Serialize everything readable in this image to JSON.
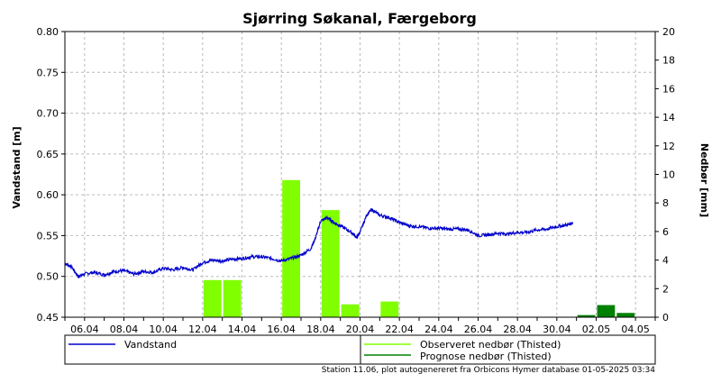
{
  "chart_data": {
    "type": "line",
    "title": "Sjørring Søkanal, Færgeborg",
    "ylabel": "Vandstand [m]",
    "y2label": "Nedbør [mm]",
    "ylim": [
      0.45,
      0.8
    ],
    "y2lim": [
      0,
      20
    ],
    "yticks": [
      "0.45",
      "0.50",
      "0.55",
      "0.60",
      "0.65",
      "0.70",
      "0.75",
      "0.80"
    ],
    "y2ticks": [
      "0",
      "2",
      "4",
      "6",
      "8",
      "10",
      "12",
      "14",
      "16",
      "18",
      "20"
    ],
    "xrange": [
      "2025-04-05",
      "2025-05-05"
    ],
    "xticks": [
      {
        "date": "2025-04-06",
        "label": "06.04"
      },
      {
        "date": "2025-04-08",
        "label": "08.04"
      },
      {
        "date": "2025-04-10",
        "label": "10.04"
      },
      {
        "date": "2025-04-12",
        "label": "12.04"
      },
      {
        "date": "2025-04-14",
        "label": "14.04"
      },
      {
        "date": "2025-04-16",
        "label": "16.04"
      },
      {
        "date": "2025-04-18",
        "label": "18.04"
      },
      {
        "date": "2025-04-20",
        "label": "20.04"
      },
      {
        "date": "2025-04-22",
        "label": "22.04"
      },
      {
        "date": "2025-04-24",
        "label": "24.04"
      },
      {
        "date": "2025-04-26",
        "label": "26.04"
      },
      {
        "date": "2025-04-28",
        "label": "28.04"
      },
      {
        "date": "2025-04-30",
        "label": "30.04"
      },
      {
        "date": "2025-05-02",
        "label": "02.05"
      },
      {
        "date": "2025-05-04",
        "label": "04.05"
      }
    ],
    "grid": true,
    "legend_position": "bottom",
    "series": [
      {
        "name": "Vandstand",
        "kind": "line",
        "axis": "left",
        "color": "#0000cc",
        "points": [
          [
            "2025-04-05 00:00",
            0.516
          ],
          [
            "2025-04-05 08:00",
            0.512
          ],
          [
            "2025-04-05 16:00",
            0.5
          ],
          [
            "2025-04-06 00:00",
            0.503
          ],
          [
            "2025-04-06 12:00",
            0.505
          ],
          [
            "2025-04-07 00:00",
            0.502
          ],
          [
            "2025-04-07 12:00",
            0.506
          ],
          [
            "2025-04-08 00:00",
            0.507
          ],
          [
            "2025-04-08 12:00",
            0.503
          ],
          [
            "2025-04-09 00:00",
            0.506
          ],
          [
            "2025-04-09 12:00",
            0.505
          ],
          [
            "2025-04-10 00:00",
            0.51
          ],
          [
            "2025-04-10 12:00",
            0.508
          ],
          [
            "2025-04-11 00:00",
            0.511
          ],
          [
            "2025-04-11 12:00",
            0.508
          ],
          [
            "2025-04-12 00:00",
            0.517
          ],
          [
            "2025-04-12 12:00",
            0.52
          ],
          [
            "2025-04-13 00:00",
            0.519
          ],
          [
            "2025-04-13 12:00",
            0.521
          ],
          [
            "2025-04-14 00:00",
            0.522
          ],
          [
            "2025-04-14 12:00",
            0.524
          ],
          [
            "2025-04-15 00:00",
            0.524
          ],
          [
            "2025-04-15 12:00",
            0.522
          ],
          [
            "2025-04-16 00:00",
            0.519
          ],
          [
            "2025-04-16 12:00",
            0.522
          ],
          [
            "2025-04-17 00:00",
            0.526
          ],
          [
            "2025-04-17 12:00",
            0.534
          ],
          [
            "2025-04-17 18:00",
            0.548
          ],
          [
            "2025-04-18 00:00",
            0.568
          ],
          [
            "2025-04-18 08:00",
            0.572
          ],
          [
            "2025-04-18 16:00",
            0.566
          ],
          [
            "2025-04-19 00:00",
            0.562
          ],
          [
            "2025-04-19 12:00",
            0.555
          ],
          [
            "2025-04-19 20:00",
            0.548
          ],
          [
            "2025-04-20 00:00",
            0.554
          ],
          [
            "2025-04-20 08:00",
            0.575
          ],
          [
            "2025-04-20 14:00",
            0.582
          ],
          [
            "2025-04-21 00:00",
            0.575
          ],
          [
            "2025-04-21 12:00",
            0.572
          ],
          [
            "2025-04-22 00:00",
            0.566
          ],
          [
            "2025-04-22 12:00",
            0.562
          ],
          [
            "2025-04-23 00:00",
            0.561
          ],
          [
            "2025-04-23 12:00",
            0.559
          ],
          [
            "2025-04-24 00:00",
            0.559
          ],
          [
            "2025-04-24 12:00",
            0.558
          ],
          [
            "2025-04-25 00:00",
            0.558
          ],
          [
            "2025-04-25 12:00",
            0.557
          ],
          [
            "2025-04-26 00:00",
            0.55
          ],
          [
            "2025-04-26 12:00",
            0.551
          ],
          [
            "2025-04-27 00:00",
            0.553
          ],
          [
            "2025-04-27 12:00",
            0.552
          ],
          [
            "2025-04-28 00:00",
            0.554
          ],
          [
            "2025-04-28 12:00",
            0.554
          ],
          [
            "2025-04-29 00:00",
            0.557
          ],
          [
            "2025-04-29 12:00",
            0.558
          ],
          [
            "2025-04-30 00:00",
            0.561
          ],
          [
            "2025-04-30 12:00",
            0.563
          ],
          [
            "2025-04-30 20:00",
            0.566
          ]
        ]
      },
      {
        "name": "Observeret nedbør (Thisted)",
        "kind": "bar",
        "axis": "right",
        "color": "#80ff00",
        "bars": [
          {
            "date": "2025-04-12",
            "value": 2.6
          },
          {
            "date": "2025-04-13",
            "value": 2.6
          },
          {
            "date": "2025-04-16",
            "value": 9.6
          },
          {
            "date": "2025-04-18",
            "value": 7.5
          },
          {
            "date": "2025-04-19",
            "value": 0.9
          },
          {
            "date": "2025-04-21",
            "value": 1.1
          }
        ]
      },
      {
        "name": "Prognose nedbør (Thisted)",
        "kind": "bar",
        "axis": "right",
        "color": "#008000",
        "bars": [
          {
            "date": "2025-05-01",
            "value": 0.15
          },
          {
            "date": "2025-05-02",
            "value": 0.85
          },
          {
            "date": "2025-05-03",
            "value": 0.3
          }
        ]
      }
    ],
    "footer": "Station 11.06, plot autogenereret fra Orbicons Hymer database 01-05-2025 03:34"
  }
}
